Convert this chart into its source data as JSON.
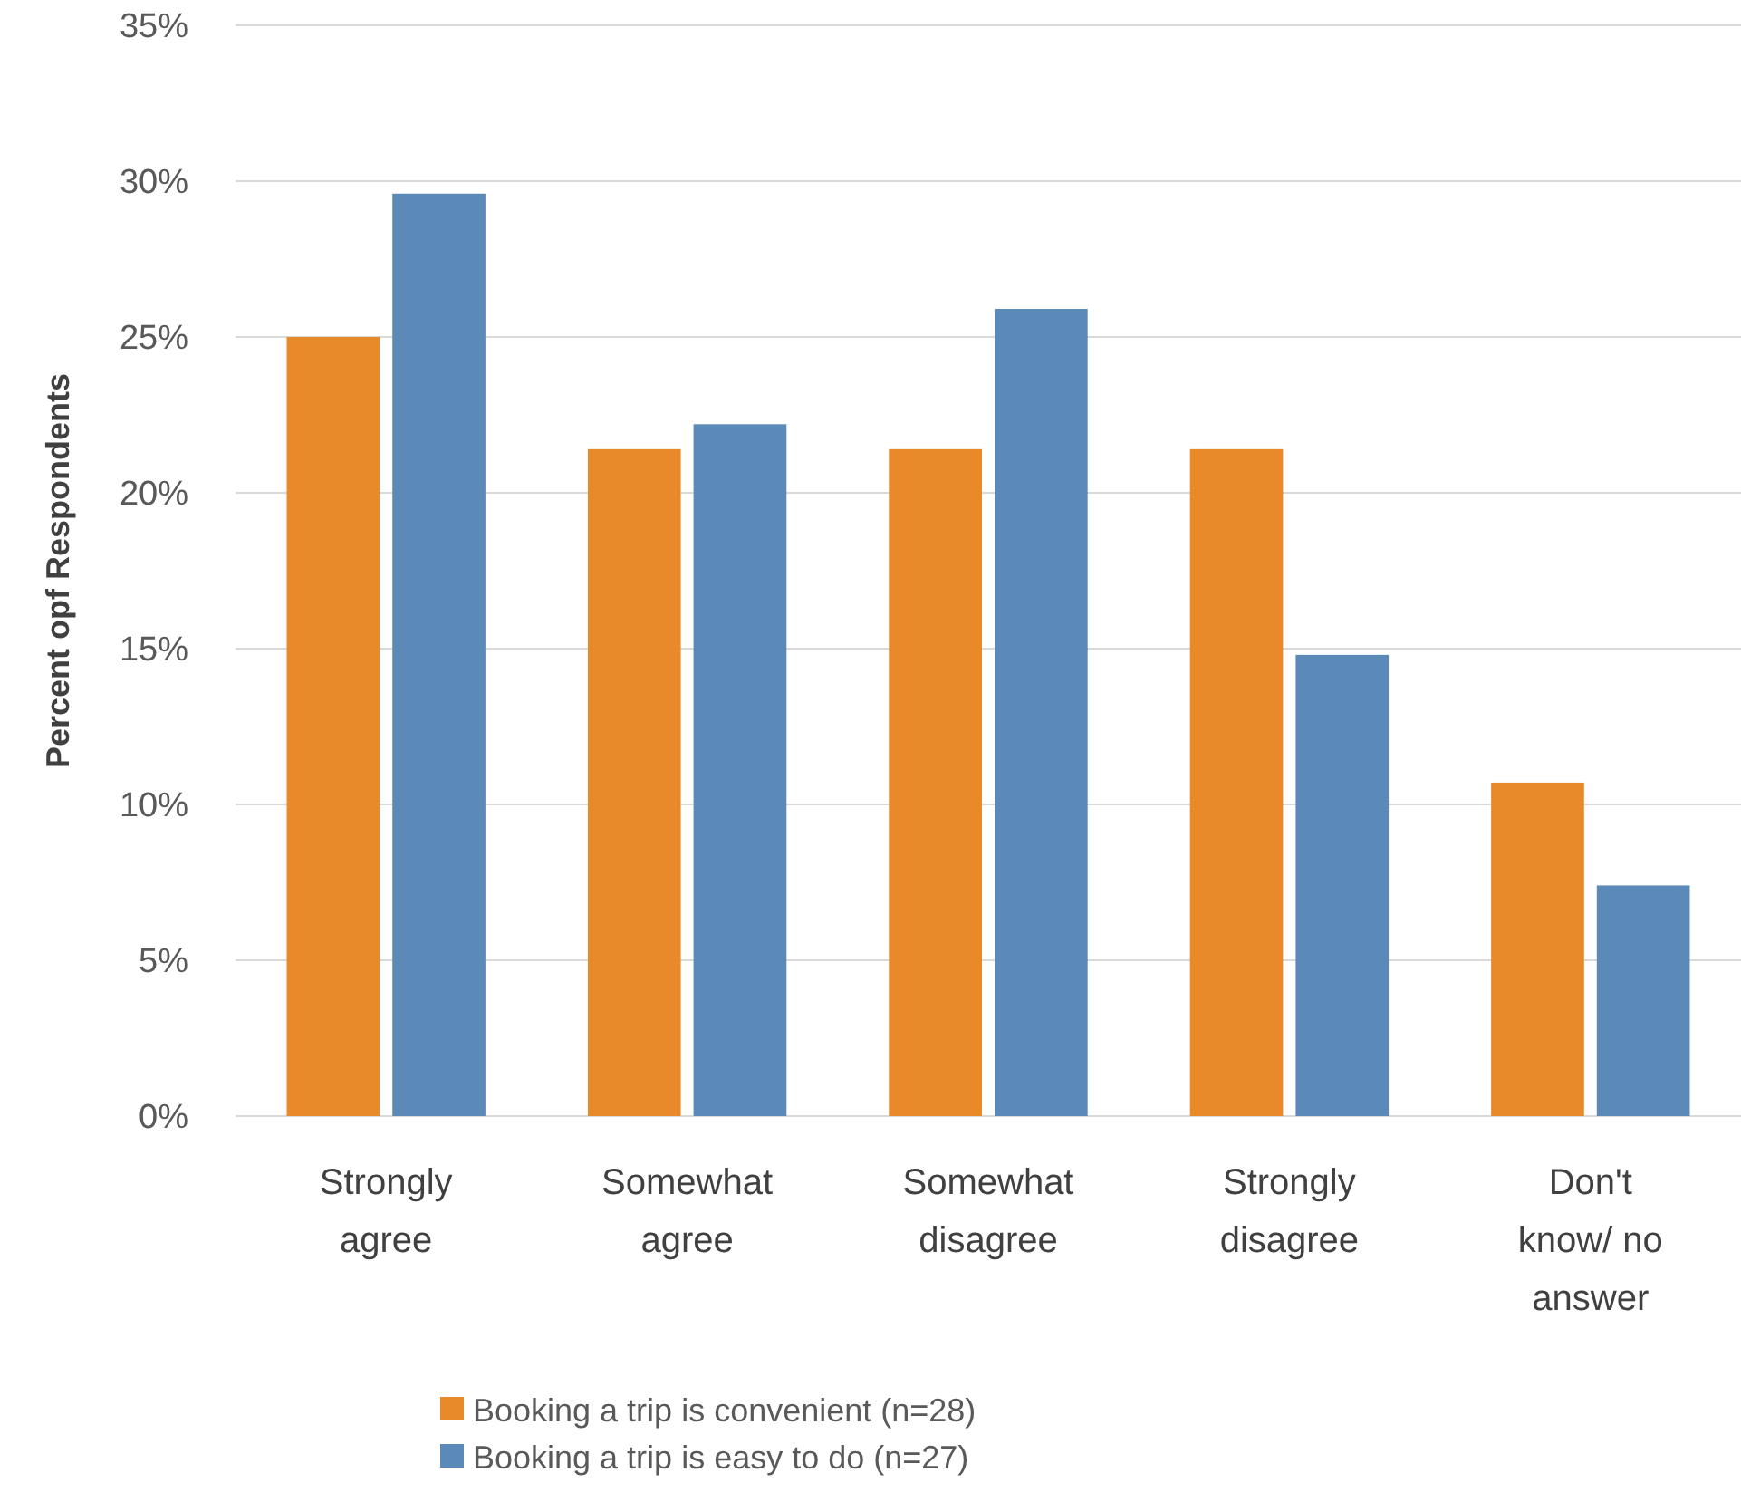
{
  "chart_data": {
    "type": "bar",
    "ylabel": "Percent opf Respondents",
    "categories": [
      "Strongly agree",
      "Somewhat agree",
      "Somewhat disagree",
      "Strongly disagree",
      "Don't know/ no answer"
    ],
    "series": [
      {
        "name": "Booking a trip is convenient (n=28)",
        "color": "#e8892a",
        "values": [
          25,
          21.4,
          21.4,
          21.4,
          10.7
        ]
      },
      {
        "name": "Booking a trip is easy to do (n=27)",
        "color": "#5b8ab8",
        "values": [
          29.6,
          22.2,
          25.9,
          14.8,
          7.4
        ]
      }
    ],
    "ylim": [
      0,
      35
    ],
    "yticks": [
      {
        "value": 0,
        "label": "0%"
      },
      {
        "value": 5,
        "label": "5%"
      },
      {
        "value": 10,
        "label": "10%"
      },
      {
        "value": 15,
        "label": "15%"
      },
      {
        "value": 20,
        "label": "20%"
      },
      {
        "value": 25,
        "label": "25%"
      },
      {
        "value": 30,
        "label": "30%"
      },
      {
        "value": 35,
        "label": "35%"
      }
    ],
    "grid": "y",
    "legend": "bottom"
  }
}
